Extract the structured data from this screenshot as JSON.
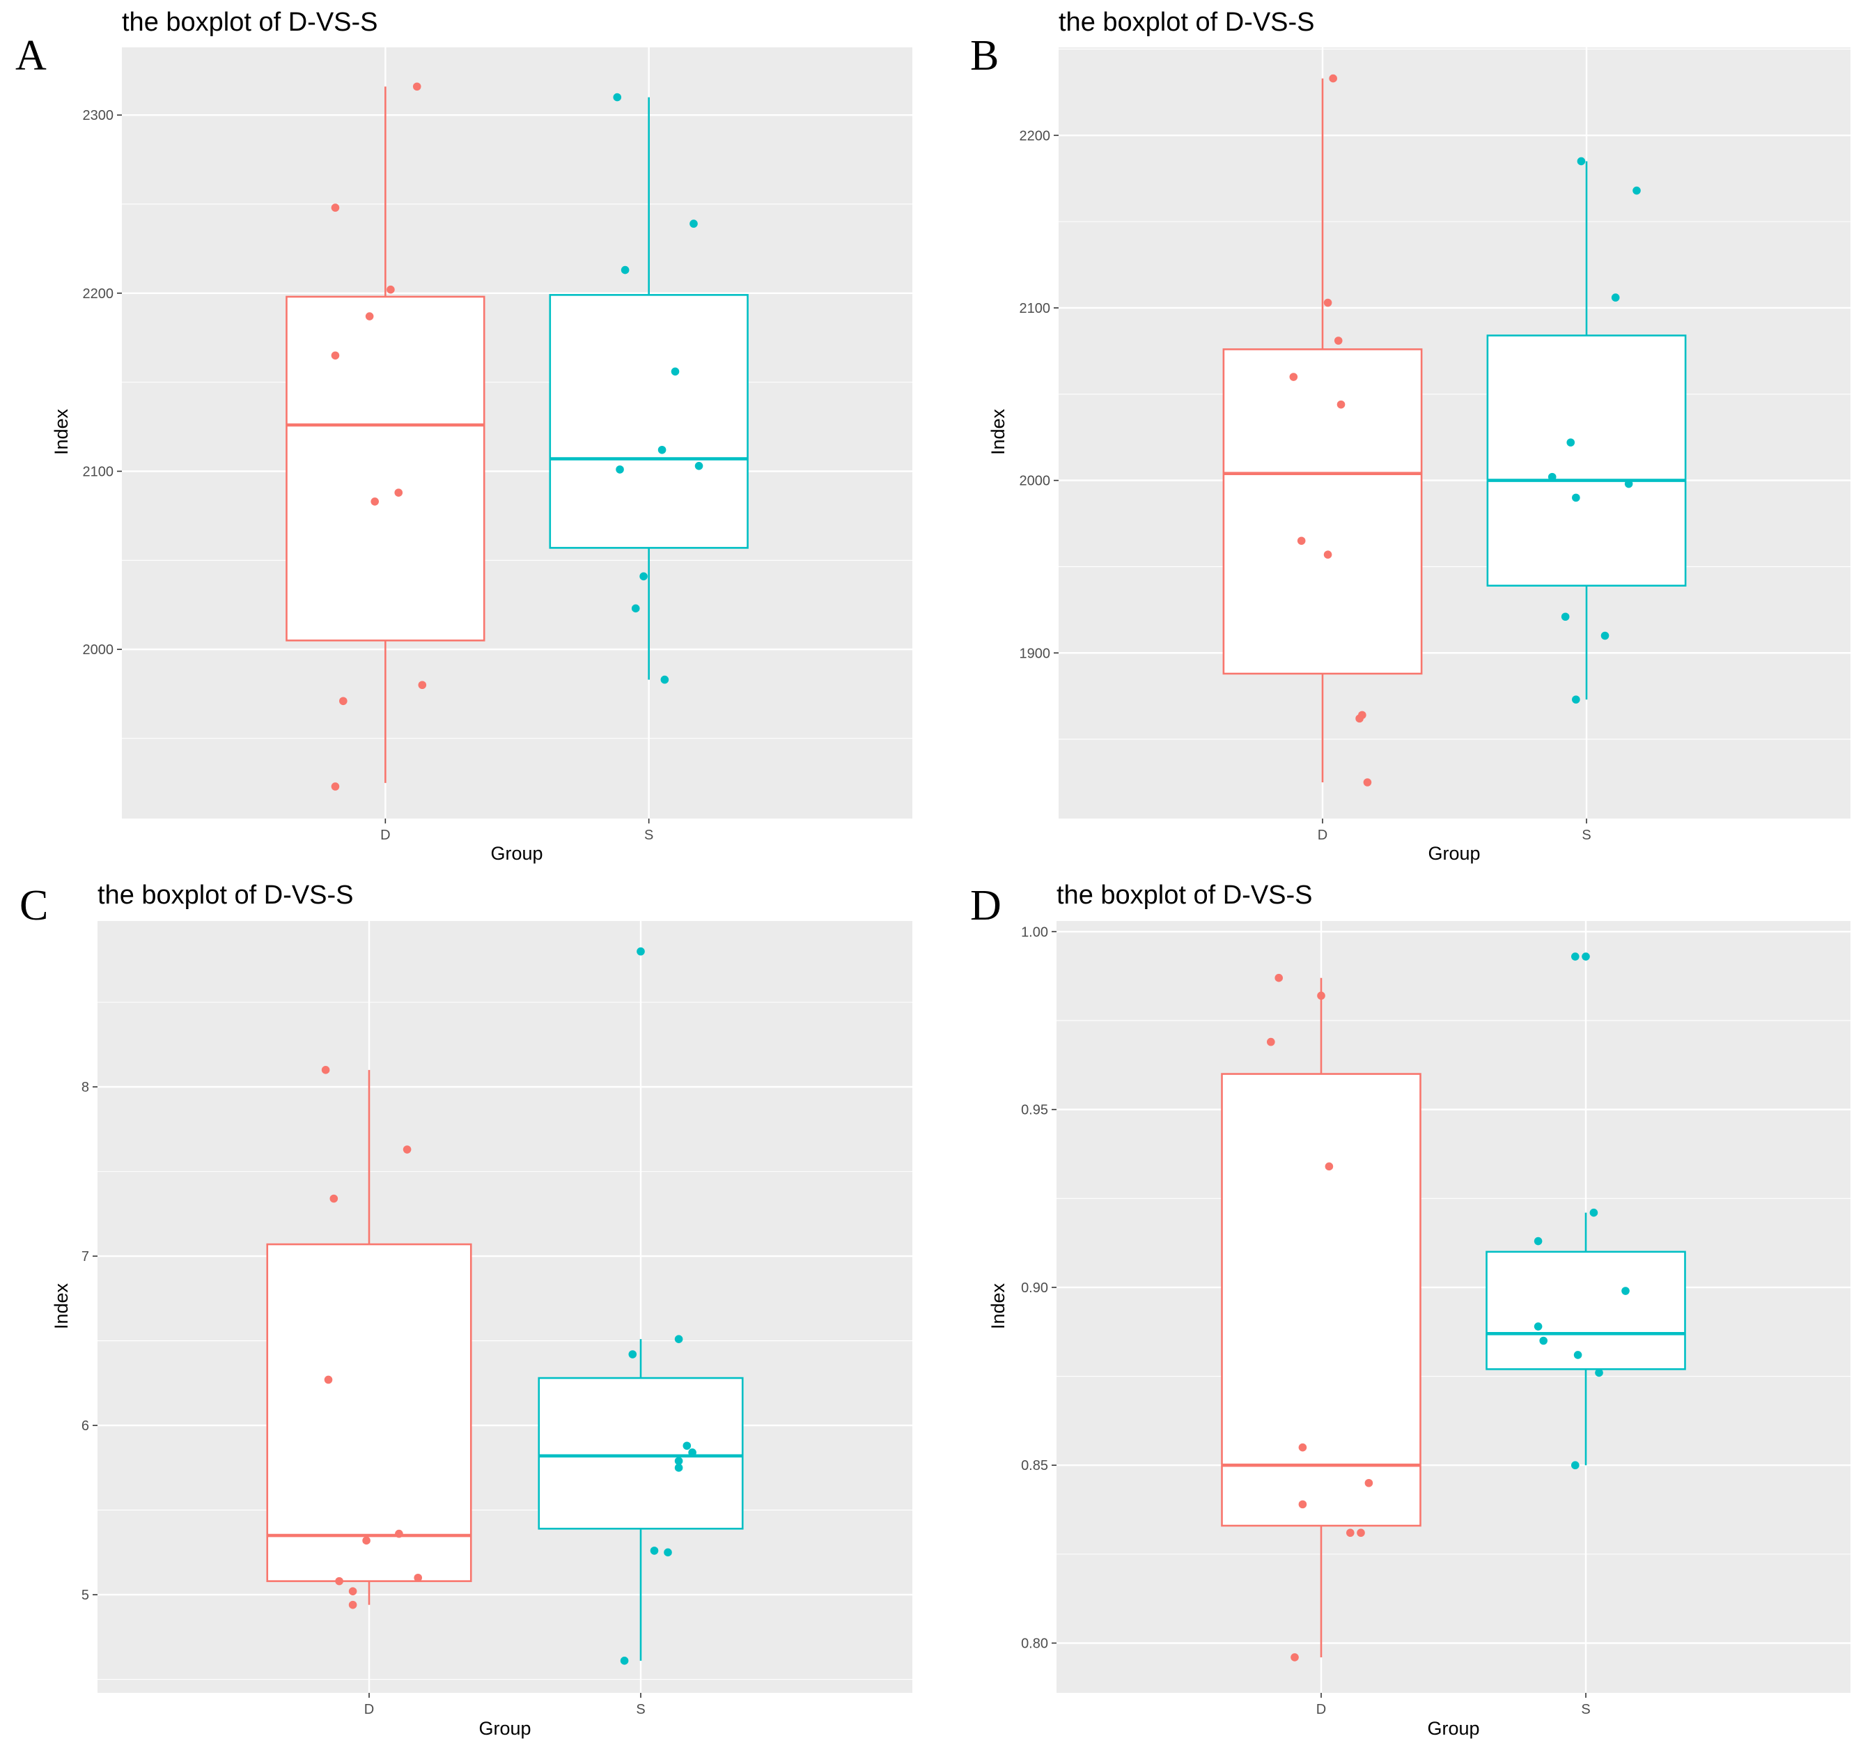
{
  "figure": {
    "title": "the boxplot of D-VS-S"
  },
  "colors": {
    "D": "#f8766d",
    "S": "#00bfc4",
    "panel_bg": "#ebebeb",
    "grid": "#ffffff"
  },
  "chart_data": [
    {
      "type": "boxplot",
      "panel_label": "A",
      "title": "the boxplot of D-VS-S",
      "xlabel": "Group",
      "ylabel": "Index",
      "categories": [
        "D",
        "S"
      ],
      "ylim": [
        1905,
        2338
      ],
      "yticks": [
        2000,
        2100,
        2200,
        2300
      ],
      "ytick_labels": [
        "2000",
        "2100",
        "2200",
        "2300"
      ],
      "boxes": [
        {
          "group": "D",
          "whisker_low": 1925,
          "q1": 2005,
          "median": 2126,
          "q3": 2198,
          "whisker_high": 2316
        },
        {
          "group": "S",
          "whisker_low": 1983,
          "q1": 2057,
          "median": 2107,
          "q3": 2199,
          "whisker_high": 2310
        }
      ],
      "points": [
        {
          "group": "D",
          "jitter": [
            -0.19,
            0.12,
            -0.19,
            0.02,
            -0.06,
            -0.04,
            0.05,
            -0.16,
            0.14,
            -0.19
          ],
          "values": [
            2248,
            2316,
            2165,
            2202,
            2187,
            2083,
            2088,
            1971,
            1980,
            1923
          ]
        },
        {
          "group": "S",
          "jitter": [
            -0.12,
            -0.09,
            0.17,
            0.1,
            0.05,
            -0.11,
            0.19,
            -0.02,
            -0.05,
            0.06
          ],
          "values": [
            2310,
            2213,
            2239,
            2156,
            2112,
            2101,
            2103,
            2041,
            2023,
            1983
          ]
        }
      ]
    },
    {
      "type": "boxplot",
      "panel_label": "B",
      "title": "the boxplot of D-VS-S",
      "xlabel": "Group",
      "ylabel": "Index",
      "categories": [
        "D",
        "S"
      ],
      "ylim": [
        1804,
        2251
      ],
      "yticks": [
        1900,
        2000,
        2100,
        2200
      ],
      "ytick_labels": [
        "1900",
        "2000",
        "2100",
        "2200"
      ],
      "boxes": [
        {
          "group": "D",
          "whisker_low": 1825,
          "q1": 1888,
          "median": 2004,
          "q3": 2076,
          "whisker_high": 2233
        },
        {
          "group": "S",
          "whisker_low": 1873,
          "q1": 1939,
          "median": 2000,
          "q3": 2084,
          "whisker_high": 2185
        }
      ],
      "points": [
        {
          "group": "D",
          "jitter": [
            0.04,
            0.02,
            0.06,
            -0.11,
            0.07,
            -0.08,
            0.02,
            0.14,
            0.15,
            0.17
          ],
          "values": [
            2233,
            2103,
            2081,
            2060,
            2044,
            1965,
            1957,
            1862,
            1864,
            1825
          ]
        },
        {
          "group": "S",
          "jitter": [
            -0.02,
            0.19,
            0.11,
            -0.06,
            -0.13,
            -0.04,
            0.16,
            -0.08,
            0.07,
            -0.04
          ],
          "values": [
            2185,
            2168,
            2106,
            2022,
            2002,
            1990,
            1998,
            1921,
            1910,
            1873
          ]
        }
      ]
    },
    {
      "type": "boxplot",
      "panel_label": "C",
      "title": "the boxplot of D-VS-S",
      "xlabel": "Group",
      "ylabel": "Index",
      "categories": [
        "D",
        "S"
      ],
      "ylim": [
        4.42,
        8.98
      ],
      "yticks": [
        5,
        6,
        7,
        8
      ],
      "ytick_labels": [
        "5",
        "6",
        "7",
        "8"
      ],
      "boxes": [
        {
          "group": "D",
          "whisker_low": 4.94,
          "q1": 5.08,
          "median": 5.35,
          "q3": 7.07,
          "whisker_high": 8.1
        },
        {
          "group": "S",
          "whisker_low": 4.61,
          "q1": 5.39,
          "median": 5.82,
          "q3": 6.28,
          "whisker_high": 6.51
        }
      ],
      "points": [
        {
          "group": "D",
          "jitter": [
            -0.16,
            0.14,
            -0.13,
            -0.15,
            -0.01,
            0.11,
            0.18,
            -0.11,
            -0.06,
            -0.06
          ],
          "values": [
            8.1,
            7.63,
            7.34,
            6.27,
            5.32,
            5.36,
            5.1,
            5.08,
            5.02,
            4.94
          ]
        },
        {
          "group": "S",
          "jitter": [
            0.0,
            -0.03,
            0.14,
            0.17,
            0.14,
            0.19,
            0.14,
            0.05,
            0.1,
            -0.06
          ],
          "values": [
            8.8,
            6.42,
            6.51,
            5.88,
            5.79,
            5.84,
            5.75,
            5.26,
            5.25,
            4.61
          ]
        }
      ]
    },
    {
      "type": "boxplot",
      "panel_label": "D",
      "title": "the boxplot of D-VS-S",
      "xlabel": "Group",
      "ylabel": "Index",
      "categories": [
        "D",
        "S"
      ],
      "ylim": [
        0.786,
        1.003
      ],
      "yticks": [
        0.8,
        0.85,
        0.9,
        0.95,
        1.0
      ],
      "ytick_labels": [
        "0.80",
        "0.85",
        "0.90",
        "0.95",
        "1.00"
      ],
      "boxes": [
        {
          "group": "D",
          "whisker_low": 0.796,
          "q1": 0.833,
          "median": 0.85,
          "q3": 0.96,
          "whisker_high": 0.987
        },
        {
          "group": "S",
          "whisker_low": 0.85,
          "q1": 0.877,
          "median": 0.887,
          "q3": 0.91,
          "whisker_high": 0.921
        }
      ],
      "points": [
        {
          "group": "D",
          "jitter": [
            -0.16,
            -0.19,
            0.0,
            0.03,
            -0.07,
            0.18,
            -0.07,
            0.11,
            0.15,
            -0.1
          ],
          "values": [
            0.987,
            0.969,
            0.982,
            0.934,
            0.855,
            0.845,
            0.839,
            0.831,
            0.831,
            0.796
          ]
        },
        {
          "group": "S",
          "jitter": [
            -0.04,
            0.0,
            -0.18,
            0.03,
            0.15,
            -0.18,
            -0.16,
            -0.03,
            0.05,
            -0.04
          ],
          "values": [
            0.993,
            0.993,
            0.913,
            0.921,
            0.899,
            0.889,
            0.885,
            0.881,
            0.876,
            0.85
          ]
        }
      ]
    }
  ]
}
